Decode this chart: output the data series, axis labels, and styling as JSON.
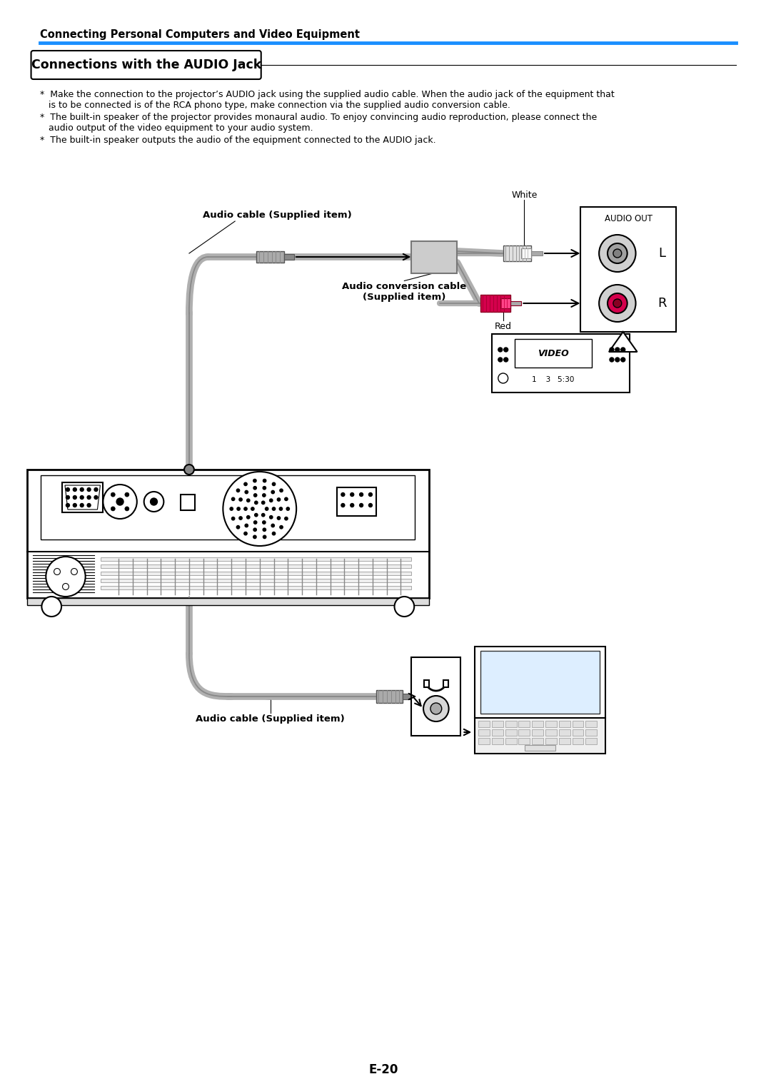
{
  "page_title": "Connecting Personal Computers and Video Equipment",
  "section_title": "Connections with the AUDIO Jack",
  "bullet1a": "*  Make the connection to the projector’s AUDIO jack using the supplied audio cable. When the audio jack of the equipment that",
  "bullet1b": "   is to be connected is of the RCA phono type, make connection via the supplied audio conversion cable.",
  "bullet2a": "*  The built-in speaker of the projector provides monaural audio. To enjoy convincing audio reproduction, please connect the",
  "bullet2b": "   audio output of the video equipment to your audio system.",
  "bullet3": "*  The built-in speaker outputs the audio of the equipment connected to the AUDIO jack.",
  "label_audio_cable_top": "Audio cable (Supplied item)",
  "label_audio_conv1": "Audio conversion cable",
  "label_audio_conv2": "(Supplied item)",
  "label_audio_cable_bot": "Audio cable (Supplied item)",
  "label_white": "White",
  "label_red": "Red",
  "label_audio_out": "AUDIO OUT",
  "label_L": "L",
  "label_R": "R",
  "label_video": "VIDEO",
  "label_page": "E-20",
  "bg_color": "#ffffff",
  "text_color": "#000000",
  "blue_line_color": "#1a8fff",
  "cable_color": "#b0b0b0",
  "rca_red_color": "#d4004c",
  "connector_gray": "#aaaaaa",
  "dark_gray": "#666666",
  "light_gray": "#cccccc",
  "panel_bg": "#f5f5f5"
}
